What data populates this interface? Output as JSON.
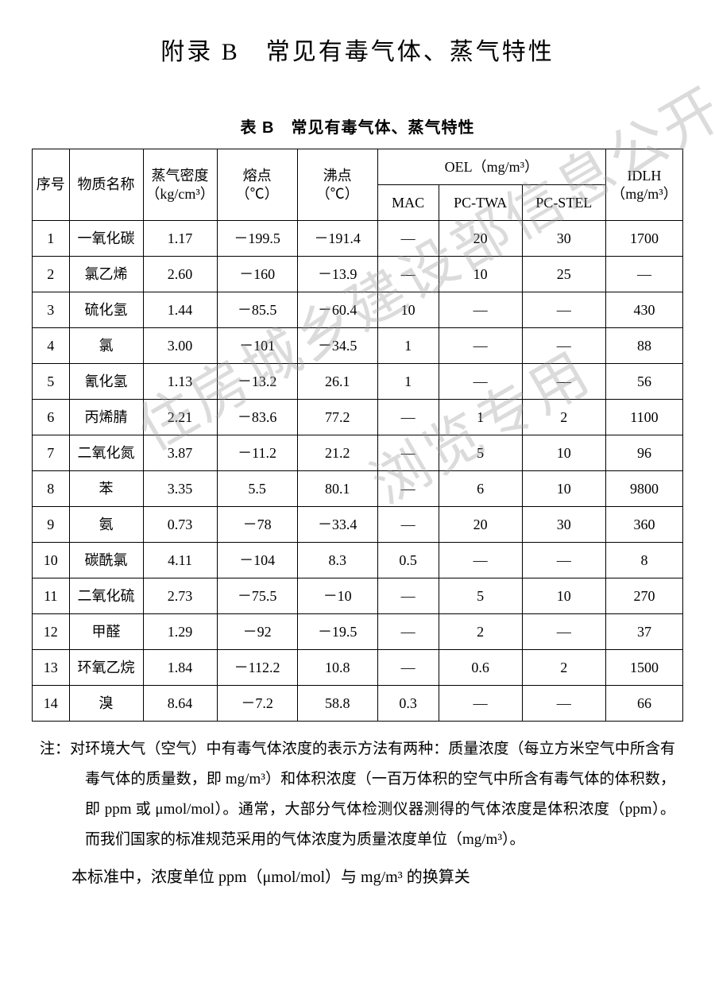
{
  "title": "附录 B　常见有毒气体、蒸气特性",
  "table_title": "表 B　常见有毒气体、蒸气特性",
  "watermark1": "住房城乡建设部信息公开",
  "watermark2": "浏览专用",
  "headers": {
    "seq": "序号",
    "name": "物质名称",
    "density_l1": "蒸气密度",
    "density_l2": "（kg/cm³）",
    "melt_l1": "熔点",
    "melt_l2": "（℃）",
    "boil_l1": "沸点",
    "boil_l2": "（℃）",
    "oel": "OEL（mg/m³）",
    "mac": "MAC",
    "pctwa": "PC-TWA",
    "pcstel": "PC-STEL",
    "idlh_l1": "IDLH",
    "idlh_l2": "（mg/m³）"
  },
  "rows": [
    {
      "seq": "1",
      "name": "一氧化碳",
      "dens": "1.17",
      "melt": "－199.5",
      "boil": "－191.4",
      "mac": "—",
      "twa": "20",
      "stel": "30",
      "idlh": "1700"
    },
    {
      "seq": "2",
      "name": "氯乙烯",
      "dens": "2.60",
      "melt": "－160",
      "boil": "－13.9",
      "mac": "—",
      "twa": "10",
      "stel": "25",
      "idlh": "—"
    },
    {
      "seq": "3",
      "name": "硫化氢",
      "dens": "1.44",
      "melt": "－85.5",
      "boil": "－60.4",
      "mac": "10",
      "twa": "—",
      "stel": "—",
      "idlh": "430"
    },
    {
      "seq": "4",
      "name": "氯",
      "dens": "3.00",
      "melt": "－101",
      "boil": "－34.5",
      "mac": "1",
      "twa": "—",
      "stel": "—",
      "idlh": "88"
    },
    {
      "seq": "5",
      "name": "氰化氢",
      "dens": "1.13",
      "melt": "－13.2",
      "boil": "26.1",
      "mac": "1",
      "twa": "—",
      "stel": "—",
      "idlh": "56"
    },
    {
      "seq": "6",
      "name": "丙烯腈",
      "dens": "2.21",
      "melt": "－83.6",
      "boil": "77.2",
      "mac": "—",
      "twa": "1",
      "stel": "2",
      "idlh": "1100"
    },
    {
      "seq": "7",
      "name": "二氧化氮",
      "dens": "3.87",
      "melt": "－11.2",
      "boil": "21.2",
      "mac": "—",
      "twa": "5",
      "stel": "10",
      "idlh": "96"
    },
    {
      "seq": "8",
      "name": "苯",
      "dens": "3.35",
      "melt": "5.5",
      "boil": "80.1",
      "mac": "—",
      "twa": "6",
      "stel": "10",
      "idlh": "9800"
    },
    {
      "seq": "9",
      "name": "氨",
      "dens": "0.73",
      "melt": "－78",
      "boil": "－33.4",
      "mac": "—",
      "twa": "20",
      "stel": "30",
      "idlh": "360"
    },
    {
      "seq": "10",
      "name": "碳酰氯",
      "dens": "4.11",
      "melt": "－104",
      "boil": "8.3",
      "mac": "0.5",
      "twa": "—",
      "stel": "—",
      "idlh": "8"
    },
    {
      "seq": "11",
      "name": "二氧化硫",
      "dens": "2.73",
      "melt": "－75.5",
      "boil": "－10",
      "mac": "—",
      "twa": "5",
      "stel": "10",
      "idlh": "270"
    },
    {
      "seq": "12",
      "name": "甲醛",
      "dens": "1.29",
      "melt": "－92",
      "boil": "－19.5",
      "mac": "—",
      "twa": "2",
      "stel": "—",
      "idlh": "37"
    },
    {
      "seq": "13",
      "name": "环氧乙烷",
      "dens": "1.84",
      "melt": "－112.2",
      "boil": "10.8",
      "mac": "—",
      "twa": "0.6",
      "stel": "2",
      "idlh": "1500"
    },
    {
      "seq": "14",
      "name": "溴",
      "dens": "8.64",
      "melt": "－7.2",
      "boil": "58.8",
      "mac": "0.3",
      "twa": "—",
      "stel": "—",
      "idlh": "66"
    }
  ],
  "note": "注：对环境大气（空气）中有毒气体浓度的表示方法有两种：质量浓度（每立方米空气中所含有毒气体的质量数，即 mg/m³）和体积浓度（一百万体积的空气中所含有毒气体的体积数，即 ppm 或 μmol/mol）。通常，大部分气体检测仪器测得的气体浓度是体积浓度（ppm）。而我们国家的标准规范采用的气体浓度为质量浓度单位（mg/m³）。",
  "para": "本标准中，浓度单位 ppm（μmol/mol）与 mg/m³ 的换算关"
}
